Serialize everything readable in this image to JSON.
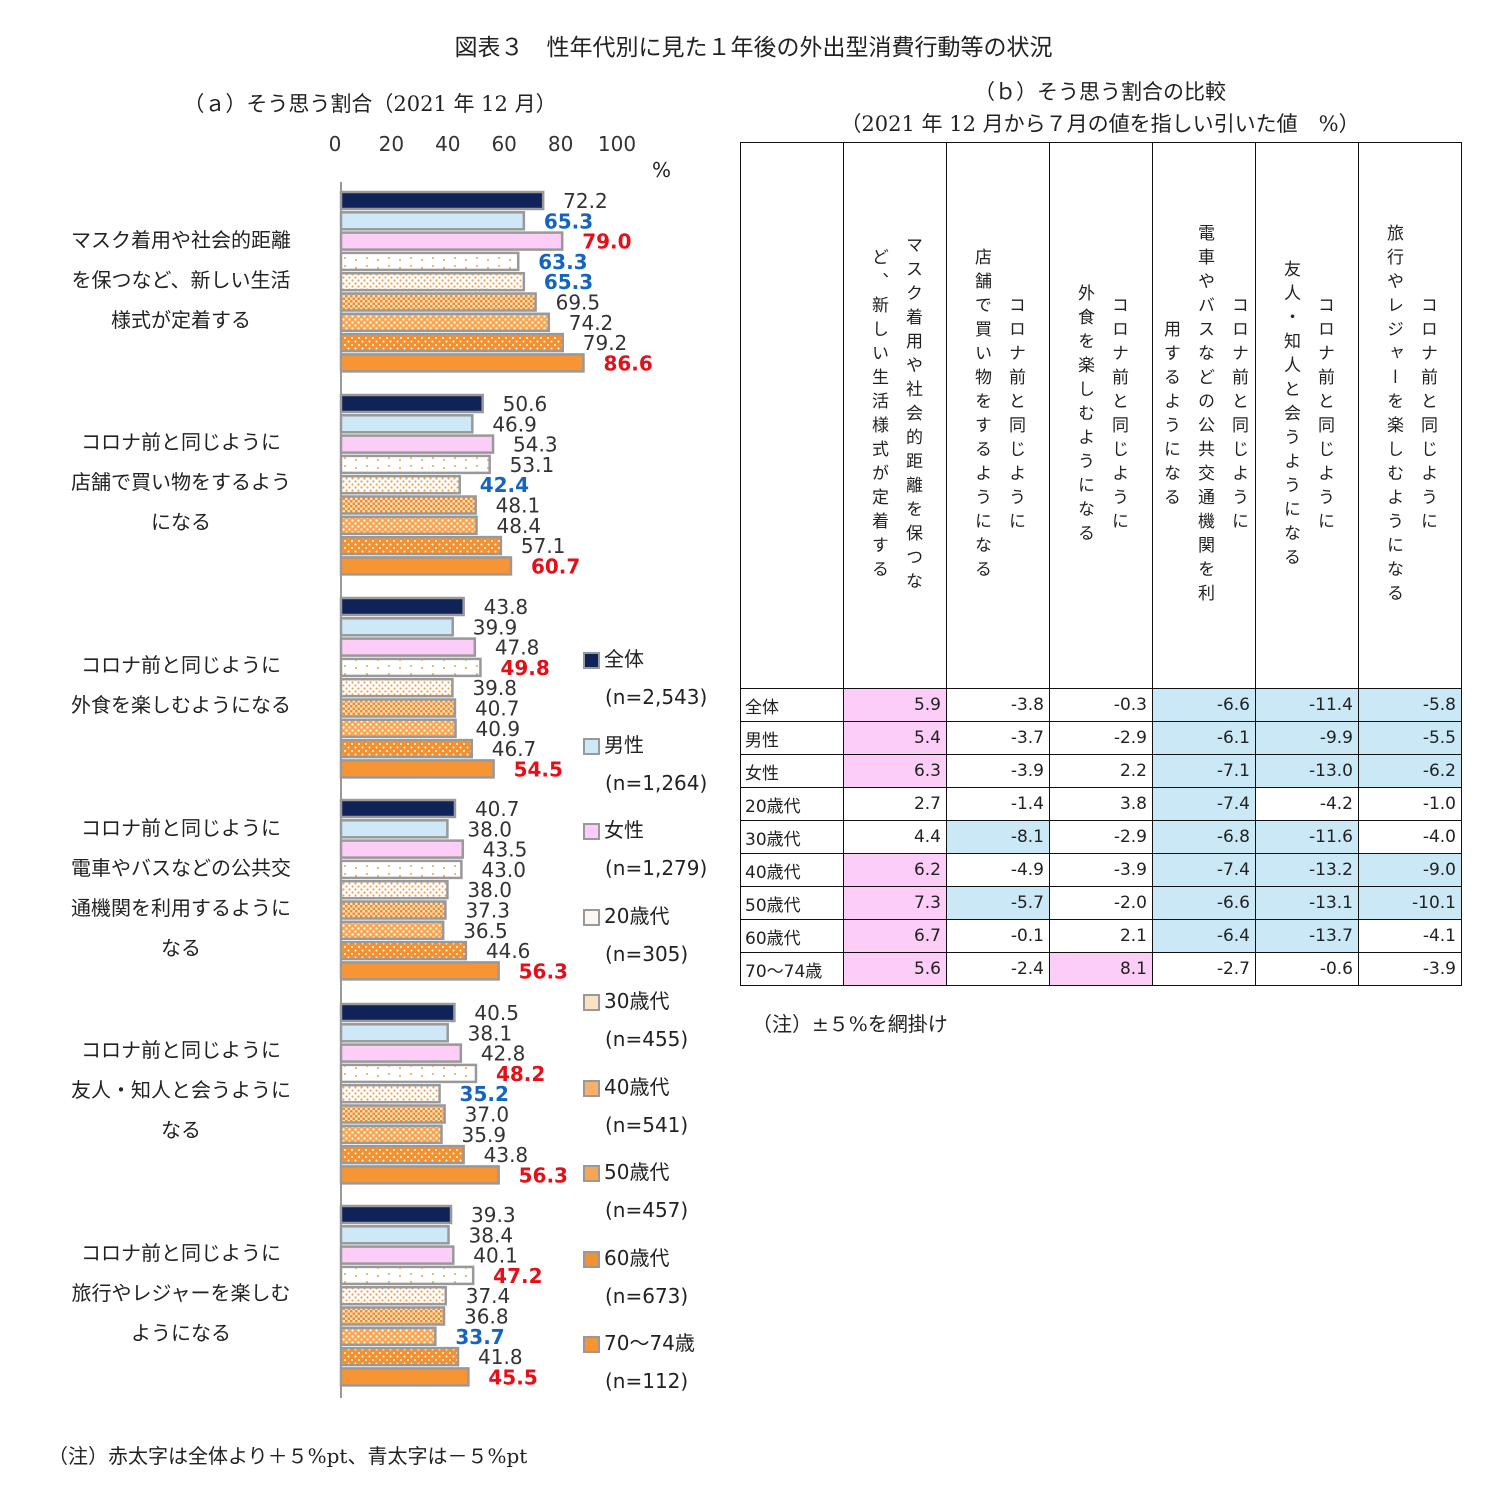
{
  "figure_title": "図表３　性年代別に見た１年後の外出型消費行動等の状況",
  "panel_a": {
    "subtitle": "（ａ）そう思う割合（2021 年 12 月）",
    "unit": "%",
    "ticks": [
      "0",
      "20",
      "40",
      "60",
      "80",
      "100"
    ],
    "note": "（注）赤太字は全体より＋５%pt、青太字は－５%pt"
  },
  "panel_b": {
    "subtitle_line1": "（ｂ）そう思う割合の比較",
    "subtitle_line2": "（2021 年 12 月から７月の値を指しい引いた値　%）",
    "note": "（注）±５%を網掛け"
  },
  "legend": [
    {
      "label": "全体",
      "n": "(n=2,543)"
    },
    {
      "label": "男性",
      "n": "(n=1,264)"
    },
    {
      "label": "女性",
      "n": "(n=1,279)"
    },
    {
      "label": "20歳代",
      "n": "(n=305)"
    },
    {
      "label": "30歳代",
      "n": "(n=455)"
    },
    {
      "label": "40歳代",
      "n": "(n=541)"
    },
    {
      "label": "50歳代",
      "n": "(n=457)"
    },
    {
      "label": "60歳代",
      "n": "(n=673)"
    },
    {
      "label": "70～74歳",
      "n": "(n=112)"
    }
  ],
  "chart_data": {
    "type": "bar",
    "orientation": "horizontal",
    "title": "（ａ）そう思う割合（2021 年 12 月）",
    "xlim": [
      0,
      100
    ],
    "xlabel": "%",
    "series_names": [
      "全体",
      "男性",
      "女性",
      "20歳代",
      "30歳代",
      "40歳代",
      "50歳代",
      "60歳代",
      "70～74歳"
    ],
    "categories": [
      {
        "lines": [
          "マスク着用や社会的距離",
          "を保つなど、新しい生活",
          "様式が定着する"
        ],
        "values": [
          72.2,
          65.3,
          79.0,
          63.3,
          65.3,
          69.5,
          74.2,
          79.2,
          86.6
        ],
        "labels": [
          "72.2",
          "65.3",
          "79.0",
          "63.3",
          "65.3",
          "69.5",
          "74.2",
          "79.2",
          "86.6"
        ],
        "emphasis": [
          "",
          "blue",
          "red",
          "blue",
          "blue",
          "",
          "",
          "",
          "red"
        ]
      },
      {
        "lines": [
          "コロナ前と同じように",
          "店舗で買い物をするよう",
          "になる"
        ],
        "values": [
          50.6,
          46.9,
          54.3,
          53.1,
          42.4,
          48.1,
          48.4,
          57.1,
          60.7
        ],
        "labels": [
          "50.6",
          "46.9",
          "54.3",
          "53.1",
          "42.4",
          "48.1",
          "48.4",
          "57.1",
          "60.7"
        ],
        "emphasis": [
          "",
          "",
          "",
          "",
          "blue",
          "",
          "",
          "",
          "red"
        ]
      },
      {
        "lines": [
          "コロナ前と同じように",
          "外食を楽しむようになる"
        ],
        "values": [
          43.8,
          39.9,
          47.8,
          49.8,
          39.8,
          40.7,
          40.9,
          46.7,
          54.5
        ],
        "labels": [
          "43.8",
          "39.9",
          "47.8",
          "49.8",
          "39.8",
          "40.7",
          "40.9",
          "46.7",
          "54.5"
        ],
        "emphasis": [
          "",
          "",
          "",
          "red",
          "",
          "",
          "",
          "",
          "red"
        ]
      },
      {
        "lines": [
          "コロナ前と同じように",
          "電車やバスなどの公共交",
          "通機関を利用するように",
          "なる"
        ],
        "values": [
          40.7,
          38.0,
          43.5,
          43.0,
          38.0,
          37.3,
          36.5,
          44.6,
          56.3
        ],
        "labels": [
          "40.7",
          "38.0",
          "43.5",
          "43.0",
          "38.0",
          "37.3",
          "36.5",
          "44.6",
          "56.3"
        ],
        "emphasis": [
          "",
          "",
          "",
          "",
          "",
          "",
          "",
          "",
          "red"
        ]
      },
      {
        "lines": [
          "コロナ前と同じように",
          "友人・知人と会うように",
          "なる"
        ],
        "values": [
          40.5,
          38.1,
          42.8,
          48.2,
          35.2,
          37.0,
          35.9,
          43.8,
          56.3
        ],
        "labels": [
          "40.5",
          "38.1",
          "42.8",
          "48.2",
          "35.2",
          "37.0",
          "35.9",
          "43.8",
          "56.3"
        ],
        "emphasis": [
          "",
          "",
          "",
          "red",
          "blue",
          "",
          "",
          "",
          "red"
        ]
      },
      {
        "lines": [
          "コロナ前と同じように",
          "旅行やレジャーを楽しむ",
          "ようになる"
        ],
        "values": [
          39.3,
          38.4,
          40.1,
          47.2,
          37.4,
          36.8,
          33.7,
          41.8,
          45.5
        ],
        "labels": [
          "39.3",
          "38.4",
          "40.1",
          "47.2",
          "37.4",
          "36.8",
          "33.7",
          "41.8",
          "45.5"
        ],
        "emphasis": [
          "",
          "",
          "",
          "red",
          "",
          "",
          "blue",
          "",
          "red"
        ]
      }
    ]
  },
  "table": {
    "headers": [
      {
        "col1": "マスク着用や社会的距離を保つな",
        "col2": "ど、新しい生活様式が定着する"
      },
      {
        "col1": "コロナ前と同じように",
        "col2": "店舗で買い物をするようになる"
      },
      {
        "col1": "コロナ前と同じように",
        "col2": "外食を楽しむようになる"
      },
      {
        "col1": "コロナ前と同じように",
        "col2": "電車やバスなどの公共交通機関を利",
        "col3": "用するようになる"
      },
      {
        "col1": "コロナ前と同じように",
        "col2": "友人・知人と会うようになる"
      },
      {
        "col1": "コロナ前と同じように",
        "col2": "旅行やレジャーを楽しむようになる"
      }
    ],
    "rows": [
      {
        "label": "全体",
        "values": [
          "5.9",
          "-3.8",
          "-0.3",
          "-6.6",
          "-11.4",
          "-5.8"
        ],
        "shade": [
          "pink",
          "",
          "",
          "blue",
          "blue",
          "blue"
        ]
      },
      {
        "label": "男性",
        "values": [
          "5.4",
          "-3.7",
          "-2.9",
          "-6.1",
          "-9.9",
          "-5.5"
        ],
        "shade": [
          "pink",
          "",
          "",
          "blue",
          "blue",
          "blue"
        ]
      },
      {
        "label": "女性",
        "values": [
          "6.3",
          "-3.9",
          "2.2",
          "-7.1",
          "-13.0",
          "-6.2"
        ],
        "shade": [
          "pink",
          "",
          "",
          "blue",
          "blue",
          "blue"
        ]
      },
      {
        "label": "20歳代",
        "values": [
          "2.7",
          "-1.4",
          "3.8",
          "-7.4",
          "-4.2",
          "-1.0"
        ],
        "shade": [
          "",
          "",
          "",
          "blue",
          "",
          ""
        ]
      },
      {
        "label": "30歳代",
        "values": [
          "4.4",
          "-8.1",
          "-2.9",
          "-6.8",
          "-11.6",
          "-4.0"
        ],
        "shade": [
          "",
          "blue",
          "",
          "blue",
          "blue",
          ""
        ]
      },
      {
        "label": "40歳代",
        "values": [
          "6.2",
          "-4.9",
          "-3.9",
          "-7.4",
          "-13.2",
          "-9.0"
        ],
        "shade": [
          "pink",
          "",
          "",
          "blue",
          "blue",
          "blue"
        ]
      },
      {
        "label": "50歳代",
        "values": [
          "7.3",
          "-5.7",
          "-2.0",
          "-6.6",
          "-13.1",
          "-10.1"
        ],
        "shade": [
          "pink",
          "blue",
          "",
          "blue",
          "blue",
          "blue"
        ]
      },
      {
        "label": "60歳代",
        "values": [
          "6.7",
          "-0.1",
          "2.1",
          "-6.4",
          "-13.7",
          "-4.1"
        ],
        "shade": [
          "pink",
          "",
          "",
          "blue",
          "blue",
          ""
        ]
      },
      {
        "label": "70～74歳",
        "values": [
          "5.6",
          "-2.4",
          "8.1",
          "-2.7",
          "-0.6",
          "-3.9"
        ],
        "shade": [
          "pink",
          "",
          "pink",
          "",
          "",
          ""
        ]
      }
    ]
  },
  "colors": {
    "red": "#e3101a",
    "blue": "#1565c0",
    "pink": "#fccdf7",
    "lightblue": "#cbe8f7",
    "navy": "#0f2358",
    "orange": "#f79534"
  }
}
